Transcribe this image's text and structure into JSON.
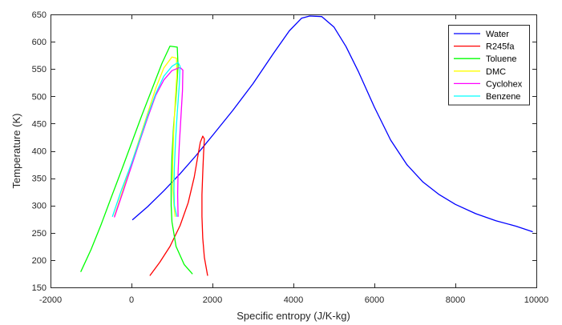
{
  "chart_data": {
    "type": "line",
    "xlabel": "Specific entropy (J/K-kg)",
    "ylabel": "Temperature (K)",
    "xlim": [
      -2000,
      10000
    ],
    "ylim": [
      150,
      650
    ],
    "xticks": [
      -2000,
      0,
      2000,
      4000,
      6000,
      8000,
      10000
    ],
    "yticks": [
      150,
      200,
      250,
      300,
      350,
      400,
      450,
      500,
      550,
      600,
      650
    ],
    "xtick_labels": [
      "-2000",
      "0",
      "2000",
      "4000",
      "6000",
      "8000",
      "10000"
    ],
    "ytick_labels": [
      "150",
      "200",
      "250",
      "300",
      "350",
      "400",
      "450",
      "500",
      "550",
      "600",
      "650"
    ],
    "grid": false,
    "legend_position": "top-right",
    "series": [
      {
        "name": "Water",
        "color": "#0000ff",
        "points": [
          [
            30,
            274
          ],
          [
            400,
            298
          ],
          [
            800,
            327
          ],
          [
            1200,
            358
          ],
          [
            1600,
            392
          ],
          [
            2000,
            428
          ],
          [
            2500,
            474
          ],
          [
            3000,
            523
          ],
          [
            3500,
            578
          ],
          [
            3900,
            620
          ],
          [
            4200,
            643
          ],
          [
            4400,
            647
          ],
          [
            4700,
            646
          ],
          [
            5000,
            627
          ],
          [
            5300,
            591
          ],
          [
            5600,
            546
          ],
          [
            6000,
            480
          ],
          [
            6400,
            420
          ],
          [
            6800,
            375
          ],
          [
            7200,
            343
          ],
          [
            7600,
            320
          ],
          [
            8000,
            302
          ],
          [
            8500,
            285
          ],
          [
            9000,
            272
          ],
          [
            9500,
            262
          ],
          [
            9900,
            252
          ]
        ]
      },
      {
        "name": "R245fa",
        "color": "#ff0000",
        "points": [
          [
            460,
            172
          ],
          [
            700,
            196
          ],
          [
            950,
            225
          ],
          [
            1200,
            263
          ],
          [
            1400,
            305
          ],
          [
            1550,
            352
          ],
          [
            1650,
            395
          ],
          [
            1700,
            416
          ],
          [
            1760,
            427
          ],
          [
            1800,
            422
          ],
          [
            1780,
            395
          ],
          [
            1760,
            360
          ],
          [
            1740,
            320
          ],
          [
            1740,
            280
          ],
          [
            1760,
            240
          ],
          [
            1800,
            205
          ],
          [
            1880,
            172
          ]
        ]
      },
      {
        "name": "Toluene",
        "color": "#00ff00",
        "points": [
          [
            -1250,
            179
          ],
          [
            -1000,
            219
          ],
          [
            -750,
            265
          ],
          [
            -500,
            315
          ],
          [
            -250,
            364
          ],
          [
            0,
            414
          ],
          [
            250,
            464
          ],
          [
            500,
            512
          ],
          [
            750,
            560
          ],
          [
            950,
            592
          ],
          [
            1130,
            590
          ],
          [
            1150,
            555
          ],
          [
            1100,
            500
          ],
          [
            1040,
            445
          ],
          [
            1000,
            390
          ],
          [
            980,
            340
          ],
          [
            980,
            300
          ],
          [
            1000,
            270
          ],
          [
            1100,
            225
          ],
          [
            1300,
            192
          ],
          [
            1500,
            175
          ]
        ]
      },
      {
        "name": "DMC",
        "color": "#ffff00",
        "points": [
          [
            -420,
            281
          ],
          [
            -200,
            331
          ],
          [
            0,
            377
          ],
          [
            200,
            423
          ],
          [
            400,
            469
          ],
          [
            600,
            515
          ],
          [
            800,
            552
          ],
          [
            1000,
            572
          ],
          [
            1110,
            570
          ],
          [
            1120,
            540
          ],
          [
            1080,
            490
          ],
          [
            1040,
            430
          ],
          [
            1020,
            380
          ],
          [
            1020,
            330
          ],
          [
            1050,
            300
          ],
          [
            1080,
            280
          ]
        ]
      },
      {
        "name": "Cyclohex",
        "color": "#ff00ff",
        "points": [
          [
            -420,
            279
          ],
          [
            -200,
            327
          ],
          [
            0,
            372
          ],
          [
            200,
            417
          ],
          [
            400,
            461
          ],
          [
            600,
            502
          ],
          [
            800,
            530
          ],
          [
            1000,
            547
          ],
          [
            1200,
            553
          ],
          [
            1270,
            548
          ],
          [
            1260,
            510
          ],
          [
            1220,
            460
          ],
          [
            1180,
            410
          ],
          [
            1150,
            360
          ],
          [
            1140,
            320
          ],
          [
            1150,
            280
          ]
        ]
      },
      {
        "name": "Benzene",
        "color": "#00ffff",
        "points": [
          [
            -470,
            280
          ],
          [
            -250,
            328
          ],
          [
            0,
            377
          ],
          [
            200,
            420
          ],
          [
            400,
            465
          ],
          [
            600,
            505
          ],
          [
            800,
            537
          ],
          [
            1000,
            555
          ],
          [
            1150,
            562
          ],
          [
            1200,
            555
          ],
          [
            1180,
            520
          ],
          [
            1130,
            470
          ],
          [
            1090,
            420
          ],
          [
            1060,
            370
          ],
          [
            1050,
            330
          ],
          [
            1060,
            300
          ],
          [
            1120,
            280
          ]
        ]
      }
    ]
  }
}
